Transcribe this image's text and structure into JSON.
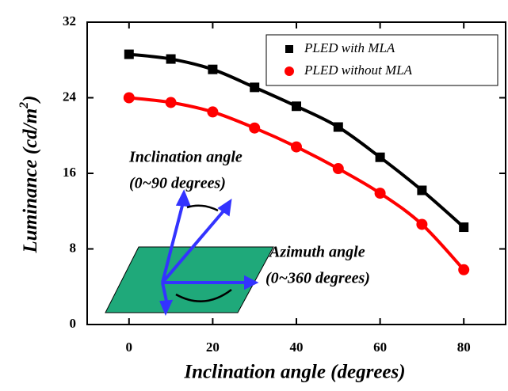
{
  "chart_data": {
    "type": "line",
    "xlabel": "Inclination angle (degrees)",
    "ylabel": [
      "Luminance (cd/m",
      "2",
      ")"
    ],
    "x": [
      0,
      10,
      20,
      30,
      40,
      50,
      60,
      70,
      80
    ],
    "series": [
      {
        "name": "PLED with MLA",
        "color": "#000000",
        "marker": "square",
        "values": [
          28.6,
          28.1,
          27.0,
          25.1,
          23.1,
          20.9,
          17.7,
          14.2,
          10.3
        ]
      },
      {
        "name": "PLED without MLA",
        "color": "#ff0000",
        "marker": "circle",
        "values": [
          24.0,
          23.5,
          22.5,
          20.8,
          18.8,
          16.5,
          13.9,
          10.6,
          5.8
        ]
      }
    ],
    "xlim": [
      -10,
      90
    ],
    "ylim": [
      0,
      32
    ],
    "xticks": [
      0,
      20,
      40,
      60,
      80
    ],
    "yticks": [
      0,
      8,
      16,
      24,
      32
    ],
    "legend": "upper right",
    "annotations": [
      "Inclination angle",
      "(0~90 degrees)",
      "Azimuth angle",
      "(0~360 degrees)"
    ]
  }
}
